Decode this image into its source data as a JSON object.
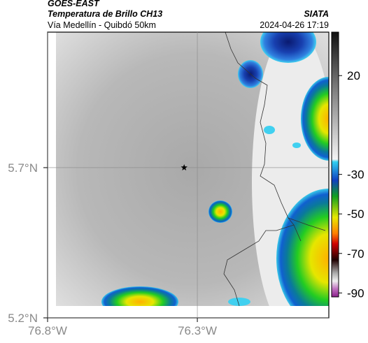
{
  "header": {
    "satellite": "GOES-EAST",
    "product": "Temperatura de Brillo CH13",
    "route": "Vía Medellín - Quibdó 50km",
    "agency": "SIATA",
    "datetime": "2024-04-26 17:19"
  },
  "map": {
    "xlim": [
      -76.8,
      -75.861
    ],
    "ylim": [
      5.2,
      6.151
    ],
    "xticks": [
      {
        "value": -76.8,
        "label": "76.8°W"
      },
      {
        "value": -76.3,
        "label": "76.3°W"
      }
    ],
    "yticks": [
      {
        "value": 5.7,
        "label": "5.7°N"
      },
      {
        "value": 5.2,
        "label": "5.2°N"
      }
    ],
    "grid": true,
    "marker": {
      "lon": -76.344,
      "lat": 5.7
    }
  },
  "colorbar": {
    "lim": [
      -92,
      42
    ],
    "ticks": [
      20,
      -30,
      -50,
      -70,
      -90
    ]
  }
}
